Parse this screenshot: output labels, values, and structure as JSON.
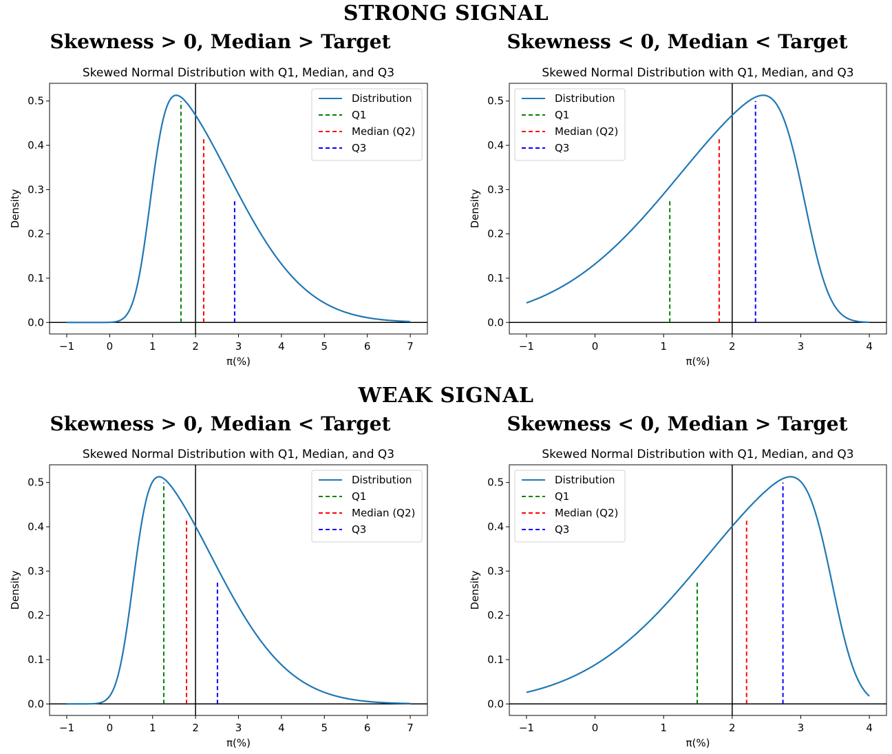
{
  "figure": {
    "section_titles": [
      "STRONG SIGNAL",
      "WEAK SIGNAL"
    ]
  },
  "chart_data": [
    {
      "type": "line",
      "section": "STRONG SIGNAL",
      "subtitle": "Skewness > 0, Median > Target",
      "title": "Skewed Normal Distribution with Q1, Median, and Q3",
      "xlabel": "π(%)",
      "ylabel": "Density",
      "xlim": [
        -1.4,
        7.4
      ],
      "ylim": [
        -0.026,
        0.54
      ],
      "xticks": [
        -1,
        0,
        1,
        2,
        3,
        4,
        5,
        6,
        7
      ],
      "xtick_labels": [
        "−1",
        "0",
        "1",
        "2",
        "3",
        "4",
        "5",
        "6",
        "7"
      ],
      "yticks": [
        0.0,
        0.1,
        0.2,
        0.3,
        0.4,
        0.5
      ],
      "ytick_labels": [
        "0.0",
        "0.1",
        "0.2",
        "0.3",
        "0.4",
        "0.5"
      ],
      "target_line_x": 2,
      "zero_line_y": 0,
      "distribution": {
        "name": "Distribution",
        "x_range": [
          -1,
          7
        ],
        "location": 1.2,
        "scale": 1.8,
        "shape": 6,
        "peak_x": 1.55,
        "peak_density": 0.513
      },
      "quartiles": [
        {
          "name": "Q1",
          "x": 1.66,
          "density": 0.5
        },
        {
          "name": "Median (Q2)",
          "x": 2.19,
          "density": 0.42
        },
        {
          "name": "Q3",
          "x": 2.91,
          "density": 0.275
        }
      ],
      "legend": {
        "position": "upper-right",
        "entries": [
          "Distribution",
          "Q1",
          "Median (Q2)",
          "Q3"
        ]
      },
      "grid": false
    },
    {
      "type": "line",
      "section": "STRONG SIGNAL",
      "subtitle": "Skewness < 0, Median < Target",
      "title": "Skewed Normal Distribution with Q1, Median, and Q3",
      "xlabel": "π(%)",
      "ylabel": "Density",
      "xlim": [
        -1.25,
        4.25
      ],
      "ylim": [
        -0.026,
        0.54
      ],
      "xticks": [
        -1,
        0,
        1,
        2,
        3,
        4
      ],
      "xtick_labels": [
        "−1",
        "0",
        "1",
        "2",
        "3",
        "4"
      ],
      "yticks": [
        0.0,
        0.1,
        0.2,
        0.3,
        0.4,
        0.5
      ],
      "ytick_labels": [
        "0.0",
        "0.1",
        "0.2",
        "0.3",
        "0.4",
        "0.5"
      ],
      "target_line_x": 2,
      "zero_line_y": 0,
      "distribution": {
        "name": "Distribution",
        "x_range": [
          -1,
          4
        ],
        "location": 2.8,
        "scale": 1.8,
        "shape": -6,
        "peak_x": 2.45,
        "peak_density": 0.513
      },
      "quartiles": [
        {
          "name": "Q1",
          "x": 1.09,
          "density": 0.275
        },
        {
          "name": "Median (Q2)",
          "x": 1.81,
          "density": 0.42
        },
        {
          "name": "Q3",
          "x": 2.34,
          "density": 0.5
        }
      ],
      "legend": {
        "position": "upper-left",
        "entries": [
          "Distribution",
          "Q1",
          "Median (Q2)",
          "Q3"
        ]
      },
      "grid": false
    },
    {
      "type": "line",
      "section": "WEAK SIGNAL",
      "subtitle": "Skewness > 0, Median < Target",
      "title": "Skewed Normal Distribution with Q1, Median, and Q3",
      "xlabel": "π(%)",
      "ylabel": "Density",
      "xlim": [
        -1.4,
        7.4
      ],
      "ylim": [
        -0.026,
        0.54
      ],
      "xticks": [
        -1,
        0,
        1,
        2,
        3,
        4,
        5,
        6,
        7
      ],
      "xtick_labels": [
        "−1",
        "0",
        "1",
        "2",
        "3",
        "4",
        "5",
        "6",
        "7"
      ],
      "yticks": [
        0.0,
        0.1,
        0.2,
        0.3,
        0.4,
        0.5
      ],
      "ytick_labels": [
        "0.0",
        "0.1",
        "0.2",
        "0.3",
        "0.4",
        "0.5"
      ],
      "target_line_x": 2,
      "zero_line_y": 0,
      "distribution": {
        "name": "Distribution",
        "x_range": [
          -1,
          7
        ],
        "location": 0.8,
        "scale": 1.8,
        "shape": 6,
        "peak_x": 1.15,
        "peak_density": 0.513
      },
      "quartiles": [
        {
          "name": "Q1",
          "x": 1.26,
          "density": 0.5
        },
        {
          "name": "Median (Q2)",
          "x": 1.79,
          "density": 0.42
        },
        {
          "name": "Q3",
          "x": 2.51,
          "density": 0.275
        }
      ],
      "legend": {
        "position": "upper-right",
        "entries": [
          "Distribution",
          "Q1",
          "Median (Q2)",
          "Q3"
        ]
      },
      "grid": false
    },
    {
      "type": "line",
      "section": "WEAK SIGNAL",
      "subtitle": "Skewness < 0, Median > Target",
      "title": "Skewed Normal Distribution with Q1, Median, and Q3",
      "xlabel": "π(%)",
      "ylabel": "Density",
      "xlim": [
        -1.25,
        4.25
      ],
      "ylim": [
        -0.026,
        0.54
      ],
      "xticks": [
        -1,
        0,
        1,
        2,
        3,
        4
      ],
      "xtick_labels": [
        "−1",
        "0",
        "1",
        "2",
        "3",
        "4"
      ],
      "yticks": [
        0.0,
        0.1,
        0.2,
        0.3,
        0.4,
        0.5
      ],
      "ytick_labels": [
        "0.0",
        "0.1",
        "0.2",
        "0.3",
        "0.4",
        "0.5"
      ],
      "target_line_x": 2,
      "zero_line_y": 0,
      "distribution": {
        "name": "Distribution",
        "x_range": [
          -1,
          4
        ],
        "location": 3.2,
        "scale": 1.8,
        "shape": -6,
        "peak_x": 2.85,
        "peak_density": 0.513
      },
      "quartiles": [
        {
          "name": "Q1",
          "x": 1.49,
          "density": 0.275
        },
        {
          "name": "Median (Q2)",
          "x": 2.21,
          "density": 0.42
        },
        {
          "name": "Q3",
          "x": 2.74,
          "density": 0.5
        }
      ],
      "legend": {
        "position": "upper-left",
        "entries": [
          "Distribution",
          "Q1",
          "Median (Q2)",
          "Q3"
        ]
      },
      "grid": false
    }
  ],
  "colors": {
    "distribution": "#1f77b4",
    "Q1": "#008000",
    "Median (Q2)": "#ff0000",
    "Q3": "#0000ff",
    "reference_lines": "#000000"
  }
}
